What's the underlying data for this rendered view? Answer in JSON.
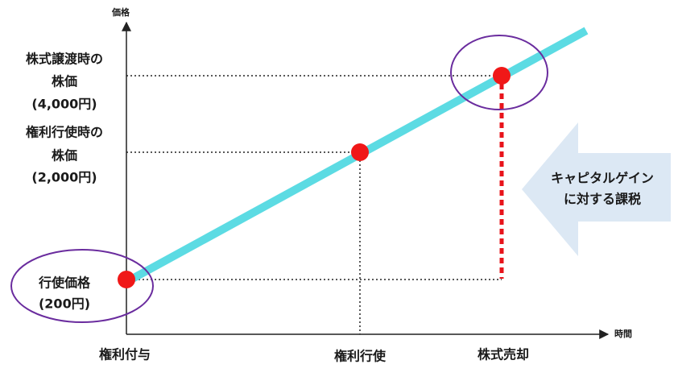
{
  "axes": {
    "y_label": "価格",
    "x_label": "時間"
  },
  "price_labels": [
    {
      "lines": [
        "株式譲渡時の",
        "株価",
        "(4,000円)"
      ]
    },
    {
      "lines": [
        "権利行使時の",
        "株価",
        "(2,000円)"
      ]
    },
    {
      "lines": [
        "行使価格",
        "(200円)"
      ]
    }
  ],
  "time_labels": [
    "権利付与",
    "権利行使",
    "株式売却"
  ],
  "callout": {
    "lines": [
      "キャピタルゲイン",
      "に対する課税"
    ]
  }
}
